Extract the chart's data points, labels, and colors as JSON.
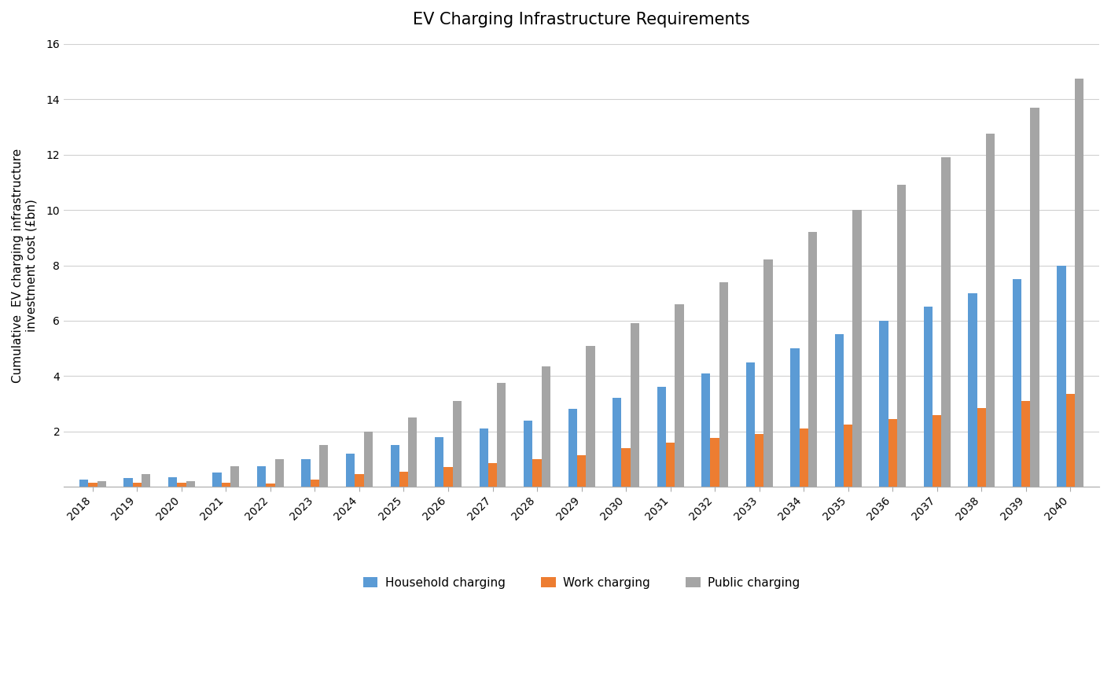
{
  "title": "EV Charging Infrastructure Requirements",
  "ylabel": "Cumulative  EV charging infrastructure\ninvestment cost (£bn)",
  "years": [
    2018,
    2019,
    2020,
    2021,
    2022,
    2023,
    2024,
    2025,
    2026,
    2027,
    2028,
    2029,
    2030,
    2031,
    2032,
    2033,
    2034,
    2035,
    2036,
    2037,
    2038,
    2039,
    2040
  ],
  "household": [
    0.25,
    0.3,
    0.35,
    0.5,
    0.75,
    1.0,
    1.2,
    1.5,
    1.8,
    2.1,
    2.4,
    2.8,
    3.2,
    3.6,
    4.1,
    4.5,
    5.0,
    5.5,
    6.0,
    6.5,
    7.0,
    7.5,
    8.0
  ],
  "work": [
    0.15,
    0.15,
    0.15,
    0.15,
    0.1,
    0.25,
    0.45,
    0.55,
    0.7,
    0.85,
    1.0,
    1.15,
    1.4,
    1.6,
    1.75,
    1.9,
    2.1,
    2.25,
    2.45,
    2.6,
    2.85,
    3.1,
    3.35
  ],
  "public": [
    0.2,
    0.45,
    0.2,
    0.75,
    1.0,
    1.5,
    2.0,
    2.5,
    3.1,
    3.75,
    4.35,
    5.1,
    5.9,
    6.6,
    7.4,
    8.2,
    9.2,
    10.0,
    10.9,
    11.9,
    12.75,
    13.7,
    14.75
  ],
  "household_color": "#5B9BD5",
  "work_color": "#ED7D31",
  "public_color": "#A5A5A5",
  "legend_labels": [
    "Household charging",
    "Work charging",
    "Public charging"
  ],
  "ylim": [
    0,
    16
  ],
  "yticks": [
    0,
    2,
    4,
    6,
    8,
    10,
    12,
    14,
    16
  ],
  "bar_width": 0.2,
  "background_color": "#FFFFFF",
  "grid_color": "#D0D0D0",
  "title_fontsize": 15,
  "label_fontsize": 11,
  "tick_fontsize": 10
}
